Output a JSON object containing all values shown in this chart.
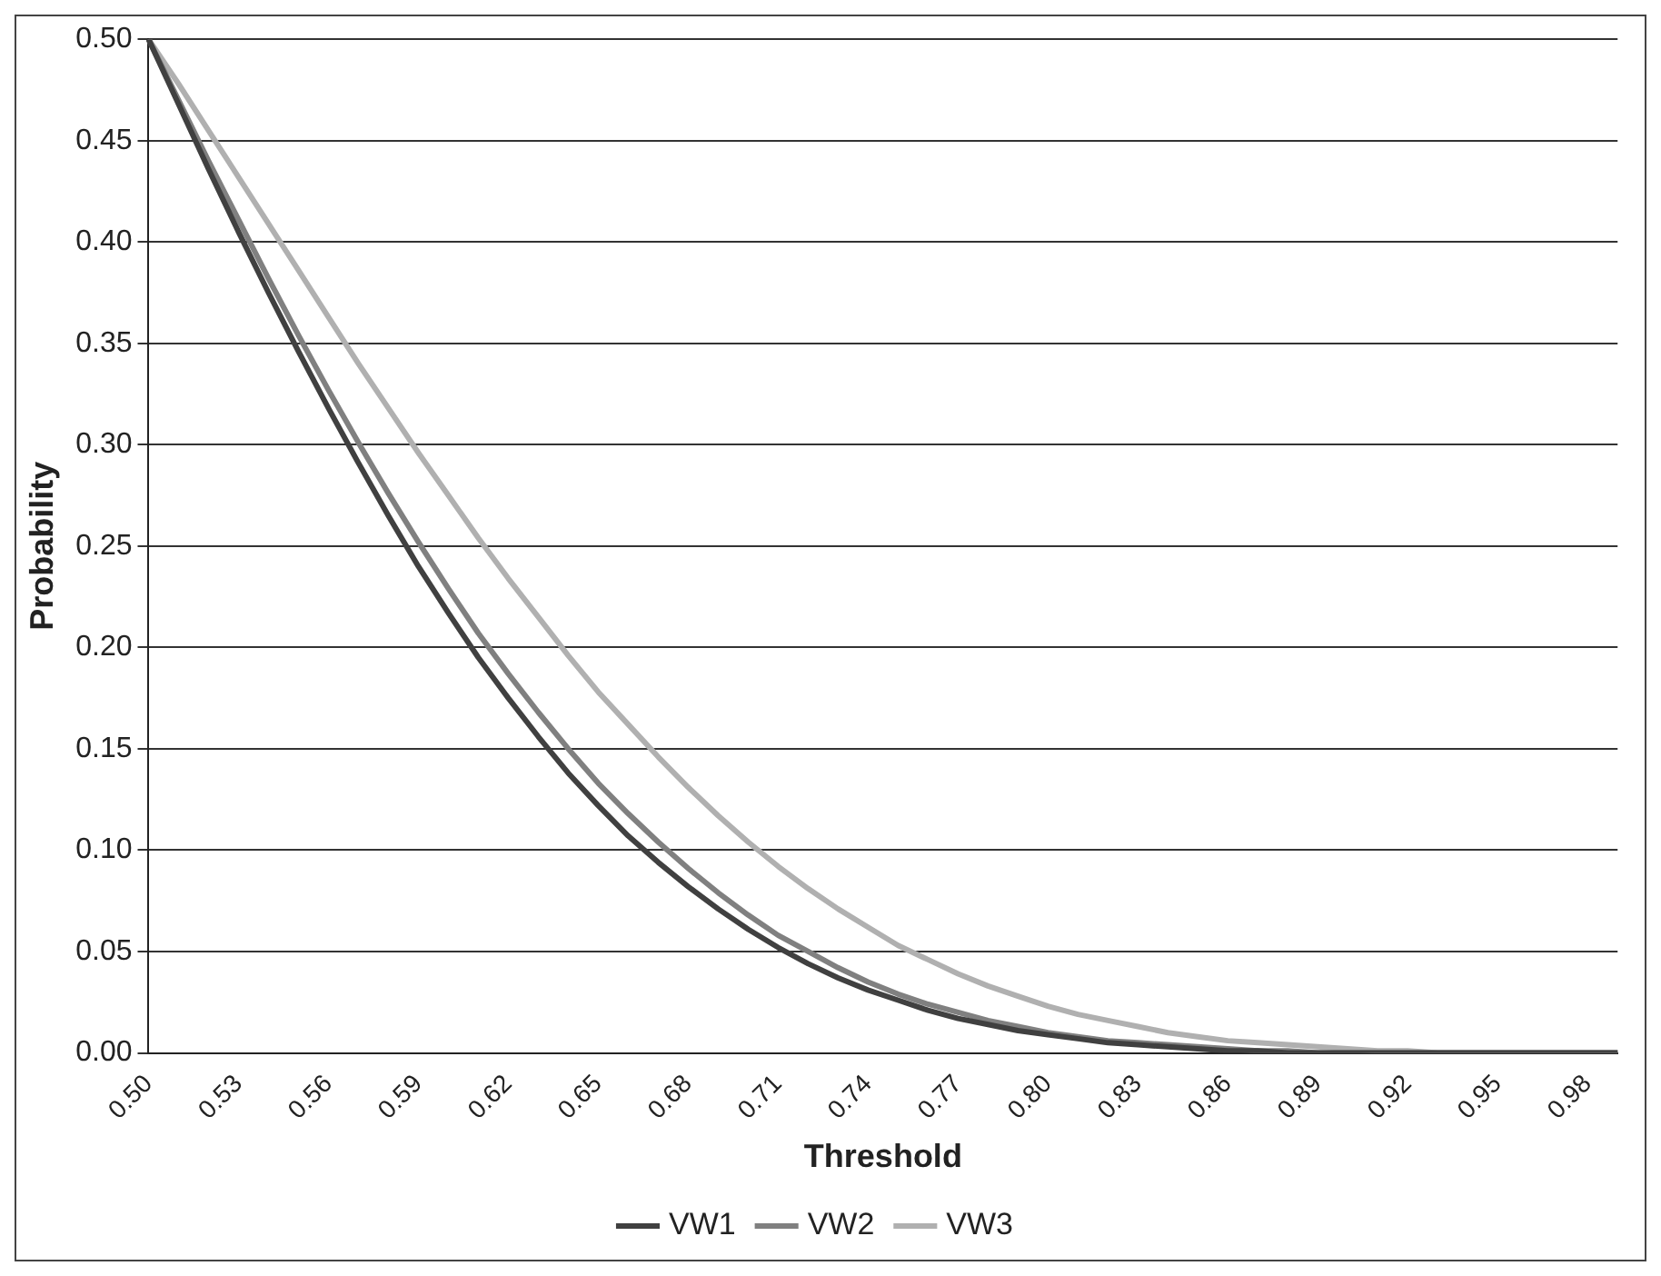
{
  "chart_data": {
    "type": "line",
    "xlabel": "Threshold",
    "ylabel": "Probability",
    "categories": [
      "0.50",
      null,
      null,
      "0.53",
      null,
      null,
      "0.56",
      null,
      null,
      "0.59",
      null,
      null,
      "0.62",
      null,
      null,
      "0.65",
      null,
      null,
      "0.68",
      null,
      null,
      "0.71",
      null,
      null,
      "0.74",
      null,
      null,
      "0.77",
      null,
      null,
      "0.80",
      null,
      null,
      "0.83",
      null,
      null,
      "0.86",
      null,
      null,
      "0.89",
      null,
      null,
      "0.92",
      null,
      null,
      "0.95",
      null,
      null,
      "0.98",
      null
    ],
    "series": [
      {
        "name": "VW1",
        "color": "#404040",
        "values": [
          0.5,
          0.468,
          0.436,
          0.405,
          0.375,
          0.346,
          0.318,
          0.291,
          0.265,
          0.24,
          0.217,
          0.195,
          0.175,
          0.156,
          0.138,
          0.122,
          0.107,
          0.094,
          0.082,
          0.071,
          0.061,
          0.052,
          0.044,
          0.037,
          0.031,
          0.026,
          0.021,
          0.017,
          0.014,
          0.011,
          0.009,
          0.007,
          0.005,
          0.004,
          0.003,
          0.002,
          0.001,
          0.001,
          0,
          0,
          0,
          0,
          0,
          0,
          0,
          0,
          0,
          0,
          0,
          0
        ]
      },
      {
        "name": "VW2",
        "color": "#808080",
        "values": [
          0.5,
          0.47,
          0.44,
          0.411,
          0.382,
          0.354,
          0.327,
          0.301,
          0.276,
          0.252,
          0.229,
          0.207,
          0.187,
          0.168,
          0.15,
          0.133,
          0.118,
          0.104,
          0.091,
          0.079,
          0.068,
          0.058,
          0.05,
          0.042,
          0.035,
          0.029,
          0.024,
          0.02,
          0.016,
          0.013,
          0.01,
          0.008,
          0.006,
          0.005,
          0.004,
          0.003,
          0.002,
          0.001,
          0.001,
          0,
          0,
          0,
          0,
          0,
          0,
          0,
          0,
          0,
          0,
          0
        ]
      },
      {
        "name": "VW3",
        "color": "#b0b0b0",
        "values": [
          0.5,
          0.478,
          0.455,
          0.432,
          0.409,
          0.386,
          0.363,
          0.34,
          0.318,
          0.296,
          0.275,
          0.254,
          0.234,
          0.215,
          0.196,
          0.178,
          0.162,
          0.146,
          0.131,
          0.117,
          0.104,
          0.092,
          0.081,
          0.071,
          0.062,
          0.053,
          0.046,
          0.039,
          0.033,
          0.028,
          0.023,
          0.019,
          0.016,
          0.013,
          0.01,
          0.008,
          0.006,
          0.005,
          0.004,
          0.003,
          0.002,
          0.001,
          0.001,
          0,
          0,
          0,
          0,
          0,
          0,
          0
        ]
      }
    ],
    "ylim": [
      0,
      0.5
    ],
    "yticks": [
      {
        "value": 0,
        "label": "0.00"
      },
      {
        "value": 0.05,
        "label": "0.05"
      },
      {
        "value": 0.1,
        "label": "0.10"
      },
      {
        "value": 0.15,
        "label": "0.15"
      },
      {
        "value": 0.2,
        "label": "0.20"
      },
      {
        "value": 0.25,
        "label": "0.25"
      },
      {
        "value": 0.3,
        "label": "0.30"
      },
      {
        "value": 0.35,
        "label": "0.35"
      },
      {
        "value": 0.4,
        "label": "0.40"
      },
      {
        "value": 0.45,
        "label": "0.45"
      },
      {
        "value": 0.5,
        "label": "0.50"
      }
    ],
    "grid": "y",
    "legend": "bottom",
    "marker": "none",
    "line_style": "solid"
  }
}
